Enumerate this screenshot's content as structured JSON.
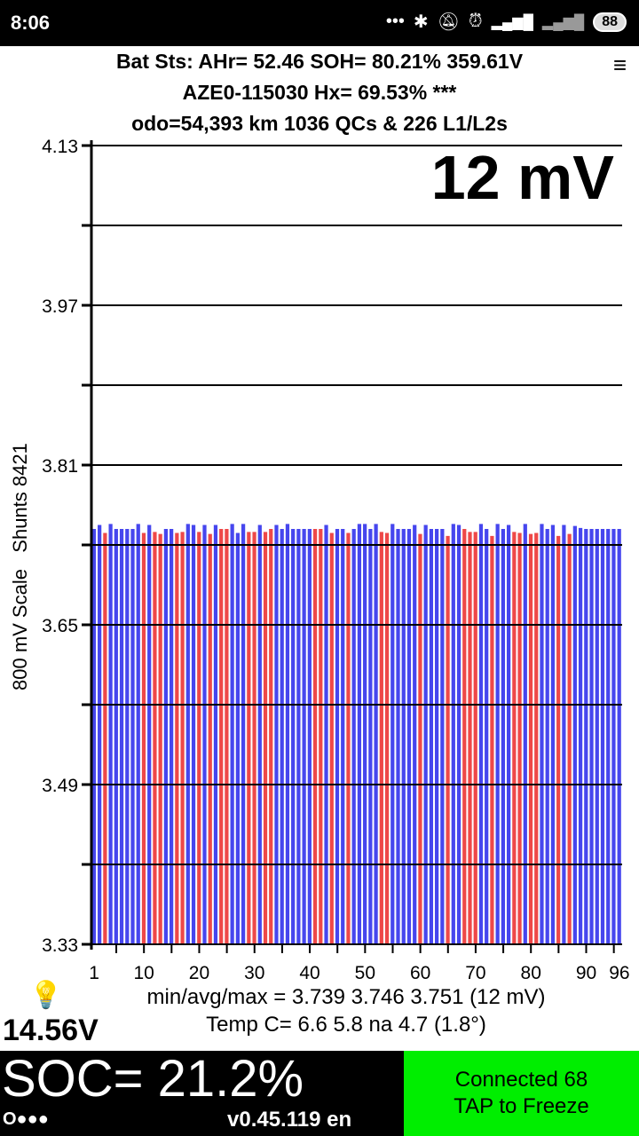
{
  "status_bar": {
    "time": "8:06",
    "icons": [
      "more-dots-icon",
      "bluetooth-icon",
      "notifications-off-icon",
      "alarm-icon",
      "signal-4g-icon",
      "signal-icon"
    ],
    "battery": "88"
  },
  "header": {
    "line1": "Bat Sts: AHr= 52.46 SOH= 80.21% 359.61V",
    "line2": "AZE0-115030   Hx= 69.53% ***",
    "line3": "odo=54,393 km 1036 QCs & 226 L1/L2s",
    "menu_icon": "≡"
  },
  "big_spread": "12 mV",
  "chart_data": {
    "type": "bar",
    "ylabel": "800 mV Scale   Shunts 8421",
    "ylim": [
      3.33,
      4.13
    ],
    "yticks": [
      "3.33",
      "3.49",
      "3.65",
      "3.81",
      "3.97",
      "4.13"
    ],
    "ygrid_step": 0.08,
    "xticks": [
      "1",
      "10",
      "20",
      "30",
      "40",
      "50",
      "60",
      "70",
      "80",
      "90",
      "96"
    ],
    "colors": {
      "normal": "#4646ee",
      "shunt": "#ee4848"
    },
    "values": [
      3.746,
      3.75,
      3.742,
      3.751,
      3.746,
      3.746,
      3.746,
      3.746,
      3.751,
      3.742,
      3.75,
      3.743,
      3.741,
      3.746,
      3.746,
      3.742,
      3.743,
      3.751,
      3.75,
      3.743,
      3.75,
      3.741,
      3.75,
      3.746,
      3.746,
      3.751,
      3.742,
      3.751,
      3.743,
      3.743,
      3.75,
      3.743,
      3.746,
      3.75,
      3.746,
      3.751,
      3.746,
      3.746,
      3.746,
      3.746,
      3.746,
      3.746,
      3.75,
      3.742,
      3.746,
      3.746,
      3.742,
      3.746,
      3.751,
      3.751,
      3.746,
      3.751,
      3.743,
      3.742,
      3.751,
      3.746,
      3.746,
      3.746,
      3.75,
      3.741,
      3.75,
      3.746,
      3.746,
      3.746,
      3.739,
      3.751,
      3.75,
      3.746,
      3.743,
      3.743,
      3.751,
      3.746,
      3.739,
      3.751,
      3.746,
      3.75,
      3.743,
      3.742,
      3.751,
      3.741,
      3.742,
      3.751,
      3.746,
      3.75,
      3.739,
      3.75,
      3.741,
      3.749,
      3.747,
      3.746,
      3.746,
      3.746,
      3.746,
      3.746,
      3.746,
      3.746
    ],
    "shunt": [
      0,
      0,
      1,
      0,
      0,
      0,
      0,
      0,
      0,
      1,
      0,
      1,
      1,
      0,
      0,
      1,
      1,
      0,
      0,
      1,
      0,
      1,
      0,
      1,
      1,
      0,
      0,
      0,
      1,
      1,
      0,
      1,
      1,
      0,
      0,
      0,
      0,
      0,
      0,
      0,
      1,
      1,
      0,
      1,
      0,
      0,
      1,
      0,
      0,
      0,
      0,
      0,
      1,
      1,
      0,
      0,
      0,
      0,
      0,
      1,
      0,
      0,
      0,
      0,
      1,
      0,
      0,
      1,
      1,
      1,
      0,
      0,
      1,
      0,
      0,
      0,
      1,
      1,
      0,
      1,
      1,
      0,
      0,
      0,
      1,
      0,
      1,
      0,
      0,
      0,
      0,
      0,
      0,
      0,
      0,
      0
    ]
  },
  "stats": {
    "minavgmax": "min/avg/max = 3.739 3.746 3.751  (12 mV)",
    "temp": "Temp C= 6.6  5.8  na  4.7  (1.8°)"
  },
  "aux_voltage": "14.56V",
  "soc": "SOC= 21.2%",
  "dots": "O●●●",
  "version": "v0.45.119 en",
  "connection": {
    "line1": "Connected 68",
    "line2": "TAP to Freeze"
  }
}
